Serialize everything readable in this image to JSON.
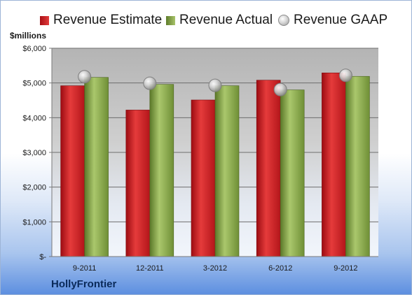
{
  "legend": {
    "estimate_label": "Revenue Estimate",
    "actual_label": "Revenue Actual",
    "gaap_label": "Revenue GAAP"
  },
  "unit_label": "$millions",
  "company_label": "HollyFrontier",
  "colors": {
    "estimate": "#c8181e",
    "actual": "#8cab50",
    "gaap": "#c0c0c0",
    "company_label": "#0a2a5a"
  },
  "chart_data": {
    "type": "bar",
    "categories": [
      "9-2011",
      "12-2011",
      "3-2012",
      "6-2012",
      "9-2012"
    ],
    "series": [
      {
        "name": "Revenue Estimate",
        "kind": "bar",
        "values": [
          4920,
          4220,
          4510,
          5080,
          5290
        ]
      },
      {
        "name": "Revenue Actual",
        "kind": "bar",
        "values": [
          5160,
          4960,
          4920,
          4800,
          5190
        ]
      },
      {
        "name": "Revenue GAAP",
        "kind": "marker",
        "values": [
          5180,
          4990,
          4930,
          4810,
          5220
        ]
      }
    ],
    "y_ticks": [
      0,
      1000,
      2000,
      3000,
      4000,
      5000,
      6000
    ],
    "y_tick_labels": [
      "$-",
      "$1,000",
      "$2,000",
      "$3,000",
      "$4,000",
      "$5,000",
      "$6,000"
    ],
    "ylim": [
      0,
      6000
    ],
    "ylabel": "$millions",
    "grid": true,
    "legend_position": "top"
  }
}
